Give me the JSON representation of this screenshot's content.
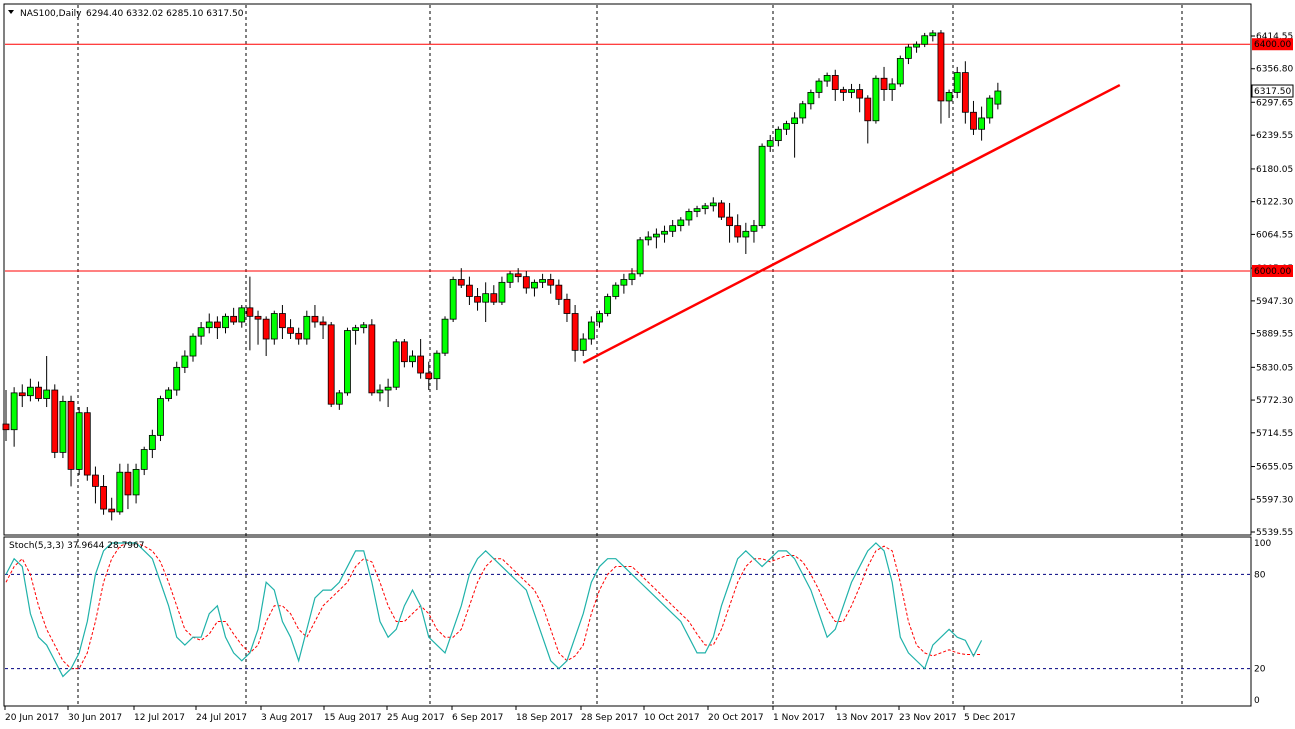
{
  "header": {
    "symbol": "NAS100,Daily",
    "ohlc": "6294.40 6332.02 6285.10 6317.50"
  },
  "indicator": {
    "label": "Stoch(5,3,3) 37.9644 28.7967",
    "levels": [
      "100",
      "80",
      "20",
      "0"
    ]
  },
  "price_axis": {
    "ticks": [
      "6414.55",
      "6356.80",
      "6297.65",
      "6239.55",
      "6180.05",
      "6122.30",
      "6064.55",
      "6005.05",
      "5947.30",
      "5889.55",
      "5830.05",
      "5772.30",
      "5714.55",
      "5655.05",
      "5597.30",
      "5539.55"
    ],
    "markers": [
      {
        "label": "6400.00",
        "value": 6400,
        "kind": "line"
      },
      {
        "label": "6317.50",
        "value": 6317.5,
        "kind": "current"
      },
      {
        "label": "6000.00",
        "value": 6000,
        "kind": "line"
      }
    ]
  },
  "time_axis": {
    "labels": [
      "20 Jun 2017",
      "30 Jun 2017",
      "12 Jul 2017",
      "24 Jul 2017",
      "3 Aug 2017",
      "15 Aug 2017",
      "25 Aug 2017",
      "6 Sep 2017",
      "18 Sep 2017",
      "28 Sep 2017",
      "10 Oct 2017",
      "20 Oct 2017",
      "1 Nov 2017",
      "13 Nov 2017",
      "23 Nov 2017",
      "5 Dec 2017"
    ]
  },
  "colors": {
    "bull": "#00ff00",
    "bear": "#ff0000",
    "hline": "#ff0000",
    "trend": "#ff0000",
    "stoch_main": "#20b2aa",
    "stoch_signal": "#ff0000",
    "level_line": "#000080"
  },
  "chart_data": {
    "type": "candlestick",
    "symbol": "NAS100",
    "timeframe": "Daily",
    "ylim": [
      5515,
      6440
    ],
    "horizontal_lines": [
      6400,
      6000
    ],
    "trendline": {
      "from": {
        "bar": 71,
        "price": 5838
      },
      "to": {
        "bar": 137,
        "price": 6328
      }
    },
    "candles": [
      [
        5730,
        5790,
        5700,
        5720
      ],
      [
        5720,
        5795,
        5690,
        5785
      ],
      [
        5785,
        5800,
        5760,
        5780
      ],
      [
        5780,
        5810,
        5770,
        5795
      ],
      [
        5795,
        5805,
        5770,
        5775
      ],
      [
        5775,
        5850,
        5760,
        5790
      ],
      [
        5790,
        5800,
        5670,
        5680
      ],
      [
        5680,
        5780,
        5670,
        5770
      ],
      [
        5770,
        5780,
        5620,
        5650
      ],
      [
        5650,
        5760,
        5640,
        5750
      ],
      [
        5750,
        5760,
        5630,
        5640
      ],
      [
        5640,
        5655,
        5590,
        5620
      ],
      [
        5620,
        5640,
        5570,
        5580
      ],
      [
        5580,
        5600,
        5560,
        5575
      ],
      [
        5575,
        5660,
        5570,
        5645
      ],
      [
        5645,
        5660,
        5580,
        5605
      ],
      [
        5605,
        5660,
        5590,
        5650
      ],
      [
        5650,
        5690,
        5640,
        5685
      ],
      [
        5685,
        5720,
        5670,
        5710
      ],
      [
        5710,
        5780,
        5700,
        5775
      ],
      [
        5775,
        5795,
        5770,
        5790
      ],
      [
        5790,
        5840,
        5780,
        5830
      ],
      [
        5830,
        5860,
        5820,
        5850
      ],
      [
        5850,
        5890,
        5840,
        5885
      ],
      [
        5885,
        5910,
        5870,
        5900
      ],
      [
        5900,
        5925,
        5890,
        5910
      ],
      [
        5910,
        5920,
        5880,
        5900
      ],
      [
        5900,
        5925,
        5890,
        5920
      ],
      [
        5920,
        5935,
        5905,
        5910
      ],
      [
        5910,
        5940,
        5900,
        5935
      ],
      [
        5935,
        5990,
        5860,
        5920
      ],
      [
        5920,
        5930,
        5870,
        5915
      ],
      [
        5915,
        5920,
        5850,
        5880
      ],
      [
        5880,
        5930,
        5870,
        5925
      ],
      [
        5925,
        5940,
        5880,
        5900
      ],
      [
        5900,
        5915,
        5880,
        5890
      ],
      [
        5890,
        5900,
        5870,
        5880
      ],
      [
        5880,
        5930,
        5870,
        5920
      ],
      [
        5920,
        5940,
        5900,
        5910
      ],
      [
        5910,
        5920,
        5880,
        5905
      ],
      [
        5905,
        5910,
        5760,
        5765
      ],
      [
        5765,
        5790,
        5755,
        5785
      ],
      [
        5785,
        5900,
        5780,
        5895
      ],
      [
        5895,
        5905,
        5870,
        5900
      ],
      [
        5900,
        5910,
        5890,
        5905
      ],
      [
        5905,
        5915,
        5780,
        5785
      ],
      [
        5785,
        5800,
        5770,
        5790
      ],
      [
        5790,
        5810,
        5760,
        5795
      ],
      [
        5795,
        5880,
        5790,
        5875
      ],
      [
        5875,
        5880,
        5830,
        5840
      ],
      [
        5840,
        5860,
        5830,
        5850
      ],
      [
        5850,
        5880,
        5810,
        5820
      ],
      [
        5820,
        5840,
        5790,
        5810
      ],
      [
        5810,
        5860,
        5790,
        5855
      ],
      [
        5855,
        5920,
        5850,
        5915
      ],
      [
        5915,
        5990,
        5910,
        5985
      ],
      [
        5985,
        6005,
        5970,
        5975
      ],
      [
        5975,
        5990,
        5940,
        5955
      ],
      [
        5955,
        5970,
        5930,
        5945
      ],
      [
        5945,
        5980,
        5910,
        5960
      ],
      [
        5960,
        5975,
        5940,
        5945
      ],
      [
        5945,
        5990,
        5940,
        5980
      ],
      [
        5980,
        6000,
        5970,
        5995
      ],
      [
        5995,
        6005,
        5980,
        5990
      ],
      [
        5990,
        6000,
        5960,
        5970
      ],
      [
        5970,
        5985,
        5955,
        5980
      ],
      [
        5980,
        5995,
        5970,
        5985
      ],
      [
        5985,
        5995,
        5960,
        5975
      ],
      [
        5975,
        5985,
        5940,
        5950
      ],
      [
        5950,
        5960,
        5910,
        5925
      ],
      [
        5925,
        5940,
        5840,
        5860
      ],
      [
        5860,
        5890,
        5850,
        5880
      ],
      [
        5880,
        5920,
        5870,
        5910
      ],
      [
        5910,
        5930,
        5900,
        5925
      ],
      [
        5925,
        5960,
        5920,
        5955
      ],
      [
        5955,
        5980,
        5950,
        5975
      ],
      [
        5975,
        5995,
        5960,
        5985
      ],
      [
        5985,
        6005,
        5975,
        5995
      ],
      [
        5995,
        6060,
        5990,
        6055
      ],
      [
        6055,
        6070,
        6045,
        6060
      ],
      [
        6060,
        6075,
        6040,
        6065
      ],
      [
        6065,
        6080,
        6050,
        6070
      ],
      [
        6070,
        6090,
        6060,
        6080
      ],
      [
        6080,
        6095,
        6070,
        6090
      ],
      [
        6090,
        6110,
        6080,
        6105
      ],
      [
        6105,
        6115,
        6095,
        6110
      ],
      [
        6110,
        6120,
        6100,
        6115
      ],
      [
        6115,
        6130,
        6105,
        6120
      ],
      [
        6120,
        6125,
        6090,
        6095
      ],
      [
        6095,
        6120,
        6050,
        6080
      ],
      [
        6080,
        6100,
        6050,
        6060
      ],
      [
        6060,
        6085,
        6030,
        6070
      ],
      [
        6070,
        6090,
        6050,
        6080
      ],
      [
        6080,
        6225,
        6075,
        6220
      ],
      [
        6220,
        6240,
        6210,
        6230
      ],
      [
        6230,
        6255,
        6220,
        6250
      ],
      [
        6250,
        6265,
        6240,
        6260
      ],
      [
        6260,
        6280,
        6200,
        6270
      ],
      [
        6270,
        6300,
        6260,
        6295
      ],
      [
        6295,
        6320,
        6285,
        6315
      ],
      [
        6315,
        6340,
        6305,
        6335
      ],
      [
        6335,
        6350,
        6325,
        6345
      ],
      [
        6345,
        6355,
        6300,
        6320
      ],
      [
        6320,
        6325,
        6300,
        6315
      ],
      [
        6315,
        6330,
        6305,
        6320
      ],
      [
        6320,
        6330,
        6280,
        6305
      ],
      [
        6305,
        6310,
        6225,
        6265
      ],
      [
        6265,
        6345,
        6260,
        6340
      ],
      [
        6340,
        6360,
        6300,
        6320
      ],
      [
        6320,
        6340,
        6300,
        6330
      ],
      [
        6330,
        6380,
        6325,
        6375
      ],
      [
        6375,
        6400,
        6365,
        6395
      ],
      [
        6395,
        6405,
        6385,
        6400
      ],
      [
        6400,
        6420,
        6395,
        6415
      ],
      [
        6415,
        6425,
        6405,
        6420
      ],
      [
        6420,
        6425,
        6260,
        6300
      ],
      [
        6300,
        6320,
        6270,
        6315
      ],
      [
        6315,
        6360,
        6305,
        6350
      ],
      [
        6350,
        6370,
        6260,
        6280
      ],
      [
        6280,
        6300,
        6240,
        6250
      ],
      [
        6250,
        6290,
        6230,
        6270
      ],
      [
        6270,
        6310,
        6260,
        6305
      ],
      [
        6294.4,
        6332.02,
        6285.1,
        6317.5
      ]
    ],
    "stochastic": {
      "label": "Stoch(5,3,3)",
      "main_value": 37.9644,
      "signal_value": 28.7967,
      "levels": [
        80,
        20
      ],
      "ylim": [
        0,
        100
      ],
      "main": [
        80,
        90,
        85,
        55,
        40,
        35,
        25,
        15,
        20,
        30,
        50,
        80,
        95,
        100,
        100,
        100,
        100,
        95,
        90,
        75,
        60,
        40,
        35,
        40,
        40,
        55,
        60,
        40,
        30,
        25,
        30,
        45,
        75,
        70,
        50,
        40,
        25,
        45,
        65,
        70,
        70,
        75,
        85,
        95,
        95,
        75,
        50,
        40,
        45,
        60,
        70,
        60,
        40,
        35,
        30,
        45,
        60,
        80,
        90,
        95,
        90,
        85,
        80,
        75,
        70,
        55,
        40,
        25,
        20,
        25,
        40,
        55,
        75,
        85,
        90,
        90,
        85,
        80,
        75,
        70,
        65,
        60,
        55,
        50,
        40,
        30,
        30,
        40,
        60,
        75,
        90,
        95,
        90,
        85,
        90,
        95,
        95,
        90,
        80,
        70,
        55,
        40,
        45,
        60,
        75,
        85,
        95,
        100,
        95,
        75,
        40,
        30,
        25,
        20,
        35,
        40,
        45,
        40,
        38,
        28,
        38
      ],
      "signal": [
        75,
        85,
        90,
        80,
        60,
        45,
        35,
        25,
        20,
        20,
        30,
        50,
        75,
        90,
        98,
        100,
        100,
        98,
        95,
        88,
        75,
        60,
        45,
        40,
        38,
        42,
        50,
        50,
        42,
        35,
        30,
        35,
        50,
        60,
        60,
        55,
        45,
        40,
        50,
        60,
        65,
        70,
        75,
        85,
        90,
        88,
        75,
        60,
        50,
        50,
        55,
        60,
        55,
        45,
        40,
        40,
        45,
        60,
        75,
        85,
        90,
        90,
        85,
        80,
        75,
        70,
        60,
        45,
        30,
        25,
        28,
        35,
        55,
        70,
        80,
        85,
        85,
        85,
        80,
        75,
        70,
        65,
        60,
        55,
        50,
        42,
        35,
        35,
        45,
        60,
        75,
        85,
        90,
        90,
        88,
        90,
        92,
        92,
        88,
        80,
        70,
        58,
        50,
        50,
        60,
        72,
        85,
        95,
        98,
        95,
        75,
        50,
        35,
        30,
        28,
        30,
        32,
        30,
        29,
        29,
        29
      ]
    }
  }
}
